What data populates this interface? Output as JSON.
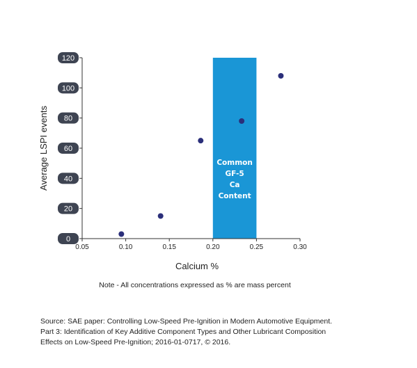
{
  "chart_data": {
    "type": "scatter",
    "xlabel": "Calcium %",
    "ylabel": "Average LSPI events",
    "xlim": [
      0.05,
      0.3
    ],
    "ylim": [
      0,
      120
    ],
    "x_ticks": [
      "0.05",
      "0.10",
      "0.15",
      "0.20",
      "0.25",
      "0.30"
    ],
    "y_ticks": [
      "0",
      "20",
      "40",
      "60",
      "80",
      "100",
      "120"
    ],
    "series": [
      {
        "x": [
          0.095,
          0.14,
          0.186,
          0.233,
          0.278
        ],
        "y": [
          3,
          15,
          65,
          78,
          108
        ]
      }
    ],
    "band": {
      "x_range": [
        0.2,
        0.25
      ],
      "label_lines": [
        "Common",
        "GF-5",
        "Ca",
        "Content"
      ],
      "color": "#1a96d6"
    },
    "point_color": "#2b2f7a",
    "grid": false
  },
  "note": "Note - All concentrations expressed as % are mass percent",
  "source_lines": [
    "Source: SAE paper: Controlling Low-Speed Pre-Ignition in Modern Automotive Equipment.",
    "Part 3: Identification of Key Additive Component Types and Other Lubricant Composition",
    "Effects on Low-Speed Pre-Ignition; 2016-01-0717, © 2016."
  ]
}
